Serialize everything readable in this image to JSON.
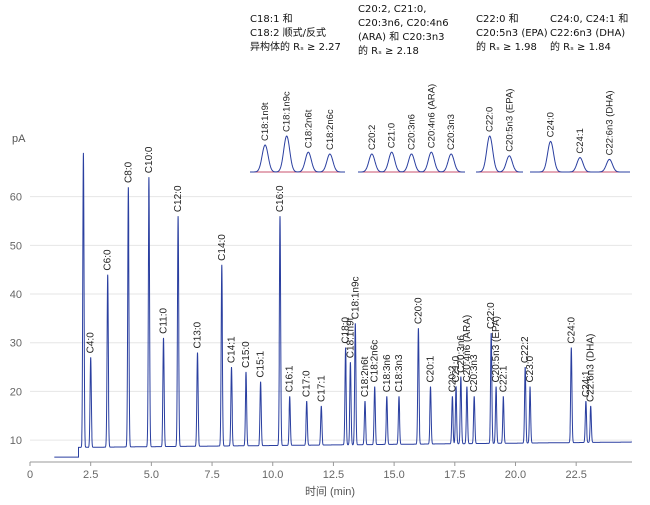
{
  "chart_data": {
    "type": "line",
    "xlabel": "时间 (min)",
    "ylabel": "pA",
    "xlim": [
      0,
      24.8
    ],
    "ylim": [
      5.5,
      70
    ],
    "x_ticks": [
      "0",
      "2.5",
      "5.0",
      "7.5",
      "10.0",
      "12.5",
      "15.0",
      "17.5",
      "20.0",
      "22.5"
    ],
    "y_ticks": [
      "10",
      "20",
      "30",
      "40",
      "50",
      "60"
    ],
    "grid": true,
    "colors": {
      "trace": "#2a3fa0",
      "inset_trace": "#2a3fa0",
      "inset_baseline": "#c8506e",
      "grid": "#e6e6e6"
    },
    "baseline_start": 6.5,
    "baseline_end": 9.6,
    "peaks": [
      {
        "label": "",
        "t": 2.2,
        "h": 69
      },
      {
        "label": "C4:0",
        "t": 2.5,
        "h": 27
      },
      {
        "label": "C6:0",
        "t": 3.2,
        "h": 44
      },
      {
        "label": "C8:0",
        "t": 4.05,
        "h": 62
      },
      {
        "label": "C10:0",
        "t": 4.9,
        "h": 64
      },
      {
        "label": "C11:0",
        "t": 5.5,
        "h": 31
      },
      {
        "label": "C12:0",
        "t": 6.1,
        "h": 56
      },
      {
        "label": "C13:0",
        "t": 6.9,
        "h": 28
      },
      {
        "label": "C14:0",
        "t": 7.9,
        "h": 46
      },
      {
        "label": "C14:1",
        "t": 8.3,
        "h": 25
      },
      {
        "label": "C15:0",
        "t": 8.9,
        "h": 24
      },
      {
        "label": "C15:1",
        "t": 9.5,
        "h": 22
      },
      {
        "label": "C16:0",
        "t": 10.3,
        "h": 56
      },
      {
        "label": "C16:1",
        "t": 10.7,
        "h": 19
      },
      {
        "label": "C17:0",
        "t": 11.4,
        "h": 18
      },
      {
        "label": "C17:1",
        "t": 12.0,
        "h": 17
      },
      {
        "label": "C18:0",
        "t": 13.0,
        "h": 29
      },
      {
        "label": "C18:1n9t",
        "t": 13.2,
        "h": 26
      },
      {
        "label": "C18:1n9c",
        "t": 13.4,
        "h": 34
      },
      {
        "label": "C18:2n6t",
        "t": 13.8,
        "h": 18
      },
      {
        "label": "C18:2n6c",
        "t": 14.2,
        "h": 21
      },
      {
        "label": "C18:3n6",
        "t": 14.7,
        "h": 19
      },
      {
        "label": "C18:3n3",
        "t": 15.2,
        "h": 19
      },
      {
        "label": "C20:0",
        "t": 16.0,
        "h": 33
      },
      {
        "label": "C20:1",
        "t": 16.5,
        "h": 21
      },
      {
        "label": "C20:2",
        "t": 17.4,
        "h": 19
      },
      {
        "label": "C21:0",
        "t": 17.55,
        "h": 21
      },
      {
        "label": "C20:3n6",
        "t": 17.75,
        "h": 23
      },
      {
        "label": "C20:4n6 (ARA)",
        "t": 18.0,
        "h": 21
      },
      {
        "label": "C20:3n3",
        "t": 18.3,
        "h": 19
      },
      {
        "label": "C22:0",
        "t": 19.0,
        "h": 32
      },
      {
        "label": "C20:5n3 (EPA)",
        "t": 19.2,
        "h": 21
      },
      {
        "label": "C22:1",
        "t": 19.5,
        "h": 19
      },
      {
        "label": "C22:2",
        "t": 20.4,
        "h": 25
      },
      {
        "label": "C23:0",
        "t": 20.6,
        "h": 21
      },
      {
        "label": "C24:0",
        "t": 22.3,
        "h": 29
      },
      {
        "label": "C24:1",
        "t": 22.9,
        "h": 18
      },
      {
        "label": "C22:6n3 (DHA)",
        "t": 23.1,
        "h": 17
      }
    ],
    "insets": [
      {
        "peaks": [
          "C18:1n9t",
          "C18:1n9c",
          "C18:2n6t",
          "C18:2n6c"
        ],
        "heights": [
          0.75,
          1.0,
          0.55,
          0.5
        ]
      },
      {
        "peaks": [
          "C20:2",
          "C21:0",
          "C20:3n6",
          "C20:4n6 (ARA)",
          "C20:3n3"
        ],
        "heights": [
          0.5,
          0.55,
          0.5,
          0.55,
          0.5
        ]
      },
      {
        "peaks": [
          "C22:0",
          "C20:5n3 (EPA)"
        ],
        "heights": [
          1.0,
          0.45
        ]
      },
      {
        "peaks": [
          "C24:0",
          "C24:1",
          "C22:6n3 (DHA)"
        ],
        "heights": [
          0.85,
          0.4,
          0.35
        ]
      }
    ],
    "annotations": [
      {
        "lines": [
          "C18:1 和",
          "C18:2 顺式/反式",
          "异构体的 Rₛ ≥ 2.27"
        ]
      },
      {
        "lines": [
          "C20:2, C21:0,",
          "C20:3n6, C20:4n6",
          "(ARA) 和 C20:3n3",
          "的 Rₛ ≥ 2.18"
        ]
      },
      {
        "lines": [
          "C22:0 和",
          "C20:5n3 (EPA)",
          "的 Rₛ ≥ 1.98"
        ]
      },
      {
        "lines": [
          "C24:0, C24:1 和",
          "C22:6n3 (DHA)",
          "的 Rₛ ≥ 1.84"
        ]
      }
    ]
  }
}
